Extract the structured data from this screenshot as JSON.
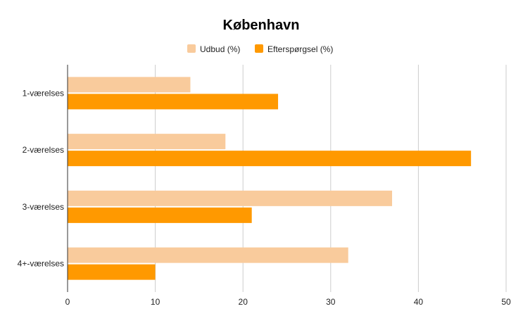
{
  "chart_data": {
    "type": "bar",
    "orientation": "horizontal",
    "title": "København",
    "categories": [
      "1-værelses",
      "2-værelses",
      "3-værelses",
      "4+-værelses"
    ],
    "series": [
      {
        "name": "Udbud (%)",
        "color": "#f9cb9c",
        "values": [
          14,
          18,
          37,
          32
        ]
      },
      {
        "name": "Efterspørgsel (%)",
        "color": "#ff9900",
        "values": [
          24,
          46,
          21,
          10
        ]
      }
    ],
    "xlim": [
      0,
      50
    ],
    "xticks": [
      "0",
      "10",
      "20",
      "30",
      "40",
      "50"
    ],
    "grid": true,
    "legend_position": "top"
  }
}
